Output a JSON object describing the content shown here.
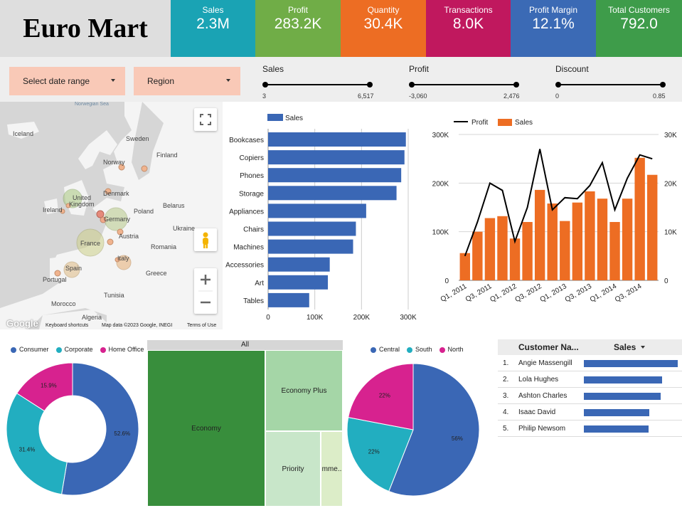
{
  "app": {
    "title": "Euro Mart"
  },
  "kpis": [
    {
      "label": "Sales",
      "value": "2.3M",
      "color": "#1aa3b4"
    },
    {
      "label": "Profit",
      "value": "283.2K",
      "color": "#70ad47"
    },
    {
      "label": "Quantity",
      "value": "30.4K",
      "color": "#ed6d23"
    },
    {
      "label": "Transactions",
      "value": "8.0K",
      "color": "#c0185e"
    },
    {
      "label": "Profit Margin",
      "value": "12.1%",
      "color": "#3b6ab5"
    },
    {
      "label": "Total Customers",
      "value": "792.0",
      "color": "#3e9c4a"
    }
  ],
  "filters": {
    "date_range": "Select date range",
    "region": "Region"
  },
  "sliders": [
    {
      "title": "Sales",
      "min": "3",
      "max": "6,517"
    },
    {
      "title": "Profit",
      "min": "-3,060",
      "max": "2,476"
    },
    {
      "title": "Discount",
      "min": "0",
      "max": "0.85"
    }
  ],
  "map": {
    "labels": {
      "norwegian_sea": "Norwegian Sea",
      "iceland": "Iceland",
      "sweden": "Sweden",
      "finland": "Finland",
      "norway": "Norway",
      "denmark": "Denmark",
      "united_kingdom_1": "United",
      "united_kingdom_2": "Kingdom",
      "ireland": "Ireland",
      "belarus": "Belarus",
      "poland": "Poland",
      "germany": "Germany",
      "ukraine": "Ukraine",
      "france": "France",
      "austria": "Austria",
      "romania": "Romania",
      "italy": "Italy",
      "spain": "Spain",
      "portugal": "Portugal",
      "greece": "Greece",
      "tunisia": "Tunisia",
      "morocco": "Morocco",
      "algeria": "Algeria"
    },
    "footer": {
      "google": "Google",
      "shortcuts": "Keyboard shortcuts",
      "map_data": "Map data ©2023 Google, INEGI",
      "terms": "Terms of Use"
    }
  },
  "chart_data": [
    {
      "type": "bar",
      "orientation": "horizontal",
      "legend": "Sales",
      "categories": [
        "Bookcases",
        "Copiers",
        "Phones",
        "Storage",
        "Appliances",
        "Chairs",
        "Machines",
        "Accessories",
        "Art",
        "Tables"
      ],
      "values": [
        295000,
        292000,
        285000,
        275000,
        210000,
        188000,
        182000,
        132000,
        128000,
        88000
      ],
      "xlim": [
        0,
        300000
      ],
      "xticks": [
        "0",
        "100K",
        "200K",
        "300K"
      ],
      "color": "#3a67b5"
    },
    {
      "type": "bar",
      "combo": "bar+line",
      "categories": [
        "Q1, 2011",
        "Q2, 2011",
        "Q3, 2011",
        "Q4, 2011",
        "Q1, 2012",
        "Q2, 2012",
        "Q3, 2012",
        "Q4, 2012",
        "Q1, 2013",
        "Q2, 2013",
        "Q3, 2013",
        "Q4, 2013",
        "Q1, 2014",
        "Q2, 2014",
        "Q3, 2014",
        "Q4, 2014"
      ],
      "xtick_labels": [
        "Q1, 2011",
        "Q3, 2011",
        "Q1, 2012",
        "Q3, 2012",
        "Q1, 2013",
        "Q3, 2013",
        "Q1, 2014",
        "Q3, 2014"
      ],
      "series": [
        {
          "name": "Sales",
          "axis": "left",
          "values": [
            56000,
            100000,
            128000,
            132000,
            86000,
            120000,
            186000,
            158000,
            122000,
            160000,
            183000,
            168000,
            120000,
            168000,
            252000,
            217000
          ],
          "color": "#ed6d23"
        },
        {
          "name": "Profit",
          "axis": "right",
          "values": [
            5000,
            12000,
            20000,
            18500,
            8000,
            15000,
            27000,
            14500,
            17000,
            16800,
            19500,
            24200,
            14500,
            21000,
            25800,
            25000
          ],
          "color": "#000000"
        }
      ],
      "ylim_left": [
        0,
        300000
      ],
      "ylim_right": [
        0,
        30000
      ],
      "yticks_left": [
        "0",
        "100K",
        "200K",
        "300K"
      ],
      "yticks_right": [
        "0",
        "10K",
        "20K",
        "30K"
      ]
    },
    {
      "type": "pie",
      "donut": true,
      "legend": [
        "Consumer",
        "Corporate",
        "Home Office"
      ],
      "values": [
        52.6,
        31.4,
        15.9
      ],
      "labels": [
        "52.6%",
        "31.4%",
        "15.9%"
      ],
      "colors": [
        "#3a67b5",
        "#22aec0",
        "#d7228f"
      ]
    },
    {
      "type": "heatmap",
      "chart_kind": "treemap",
      "title": "All",
      "items": [
        {
          "label": "Economy",
          "color": "#388e3c"
        },
        {
          "label": "Economy Plus",
          "color": "#a5d6a7"
        },
        {
          "label": "Priority",
          "color": "#c8e6c9"
        },
        {
          "label": "Imme...",
          "color": "#dcedc8"
        }
      ]
    },
    {
      "type": "pie",
      "legend": [
        "Central",
        "South",
        "North"
      ],
      "values": [
        56,
        22,
        22
      ],
      "labels": [
        "56%",
        "22%",
        "22%"
      ],
      "colors": [
        "#3a67b5",
        "#22aec0",
        "#d7228f"
      ]
    }
  ],
  "table": {
    "headers": [
      "Customer Na...",
      "Sales"
    ],
    "rows": [
      {
        "idx": "1.",
        "name": "Angie Massengill",
        "share": 1.0
      },
      {
        "idx": "2.",
        "name": "Lola Hughes",
        "share": 0.83
      },
      {
        "idx": "3.",
        "name": "Ashton Charles",
        "share": 0.82
      },
      {
        "idx": "4.",
        "name": "Isaac David",
        "share": 0.7
      },
      {
        "idx": "5.",
        "name": "Philip Newsom",
        "share": 0.69
      }
    ]
  },
  "icons": {
    "fullscreen": "fullscreen-icon",
    "pegman": "pegman-icon",
    "zoom_in": "zoom-in-icon",
    "zoom_out": "zoom-out-icon",
    "dropdown": "chevron-down-icon",
    "sort": "sort-desc-icon"
  }
}
